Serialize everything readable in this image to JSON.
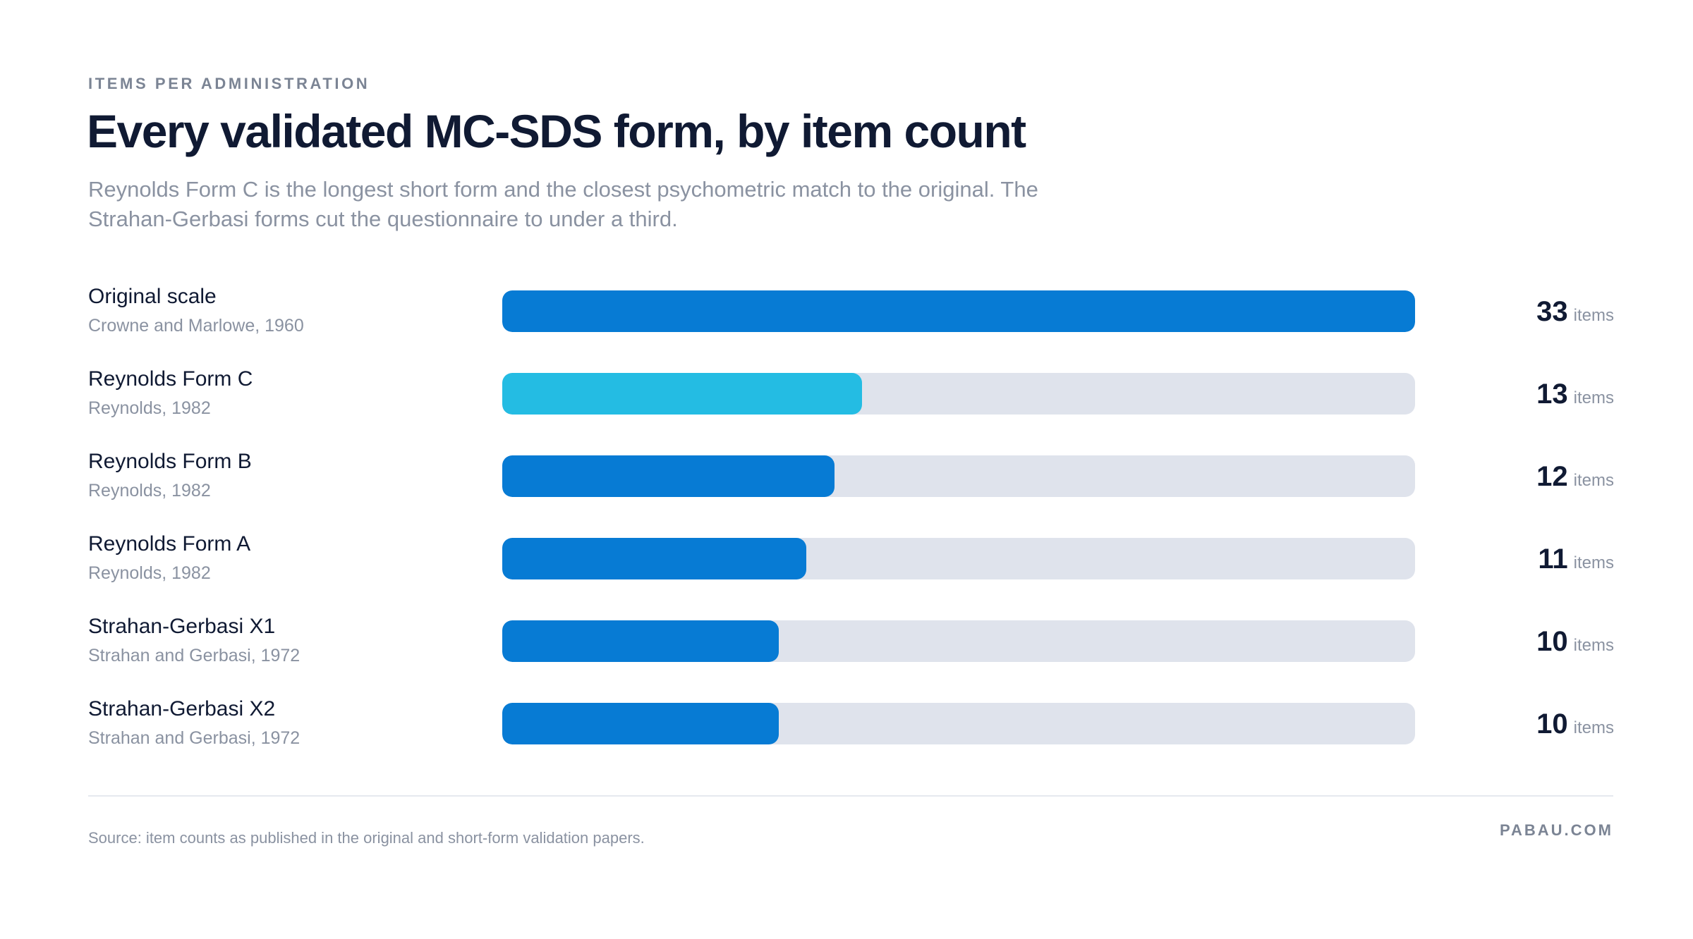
{
  "header": {
    "eyebrow": "ITEMS PER ADMINISTRATION",
    "title": "Every validated MC-SDS form, by item count",
    "subtitle": "Reynolds Form C is the longest short form and the closest psychometric match to the original. The Strahan-Gerbasi forms cut the questionnaire to under a third."
  },
  "chart_data": {
    "type": "bar",
    "orientation": "horizontal",
    "title": "Every validated MC-SDS form, by item count",
    "xlim": [
      0,
      33
    ],
    "grid": false,
    "unit_label": "items",
    "categories": [
      "Original scale",
      "Reynolds Form C",
      "Reynolds Form B",
      "Reynolds Form A",
      "Strahan-Gerbasi X1",
      "Strahan-Gerbasi X2"
    ],
    "subtitles": [
      "Crowne and Marlowe, 1960",
      "Reynolds, 1982",
      "Reynolds, 1982",
      "Reynolds, 1982",
      "Strahan and Gerbasi, 1972",
      "Strahan and Gerbasi, 1972"
    ],
    "values": [
      33,
      13,
      12,
      11,
      10,
      10
    ],
    "colors": [
      "#077bd4",
      "#24bce3",
      "#077bd4",
      "#077bd4",
      "#077bd4",
      "#077bd4"
    ],
    "track_color": "#dfe3ec"
  },
  "footer": {
    "source": "Source: item counts as published in the original and short-form validation papers.",
    "brand": "PABAU.COM"
  }
}
